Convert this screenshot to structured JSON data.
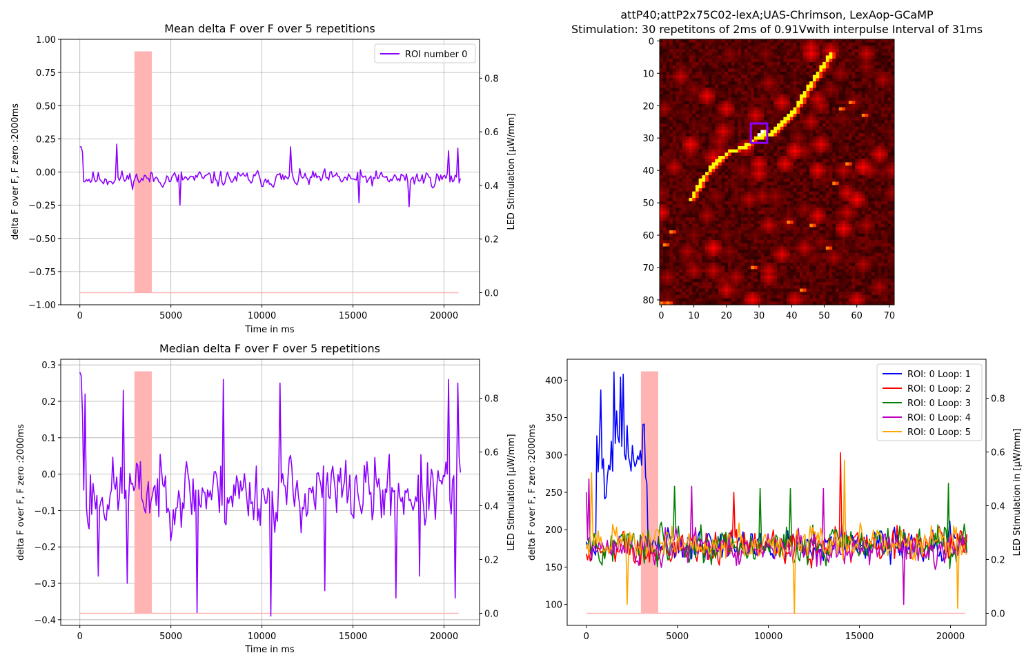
{
  "chart_data": [
    {
      "type": "line",
      "title": "Mean delta F over F over 5 repetitions",
      "xlabel": "Time in ms",
      "ylabel": "delta F over F, F zero :2000ms",
      "y2label": "LED Stimulation [$\\mu$W/mm]",
      "xlim": [
        -1050,
        21950
      ],
      "ylim": [
        -1.0,
        1.0
      ],
      "y2lim": [
        -0.045,
        0.945
      ],
      "xticks": [
        0,
        5000,
        10000,
        15000,
        20000
      ],
      "yticks": [
        1.0,
        0.75,
        0.5,
        0.25,
        0.0,
        -0.25,
        -0.5,
        -0.75,
        -1.0
      ],
      "ytick_labels": [
        "1.00",
        "0.75",
        "0.50",
        "0.25",
        "0.00",
        "−0.25",
        "−0.50",
        "−0.75",
        "−1.00"
      ],
      "y2ticks": [
        0.0,
        0.2,
        0.4,
        0.6,
        0.8
      ],
      "grid": true,
      "legend": "top-right",
      "stimulus": {
        "start": 3000,
        "end": 3950,
        "top": 0.9,
        "baseline": 0.0,
        "x_end": 20800,
        "color": "#ffb3b3"
      },
      "series": [
        {
          "name": "ROI number 0",
          "color": "#8b00ff",
          "x_start": 0,
          "x_end": 20900,
          "n": 290,
          "mean": -0.05,
          "amplitude": 0.075,
          "seed": 11,
          "spikes": [
            [
              0,
              0.19
            ],
            [
              1,
              0.19
            ],
            [
              2,
              0.15
            ],
            [
              28,
              0.21
            ],
            [
              160,
              0.19
            ],
            [
              250,
              -0.26
            ],
            [
              212,
              -0.23
            ],
            [
              76,
              -0.25
            ],
            [
              280,
              0.16
            ],
            [
              287,
              0.18
            ]
          ]
        }
      ]
    },
    {
      "type": "heatmap",
      "title": "attP40;attP2x75C02-lexA;UAS-Chrimson, LexAop-GCaMP",
      "subtitle": "Stimulation: 30 repetitons of 2ms of 0.91Vwith interpulse Interval of 31ms",
      "xticks": [
        0,
        10,
        20,
        30,
        40,
        50,
        60,
        70
      ],
      "yticks": [
        0,
        10,
        20,
        30,
        40,
        50,
        60,
        70,
        80
      ],
      "xlim": [
        -0.5,
        71.5
      ],
      "ylim": [
        -0.5,
        81.5
      ],
      "colormap": "hot",
      "roi_box": {
        "x": [
          28,
          32
        ],
        "y": [
          26,
          31
        ],
        "color": "#8b00ff"
      },
      "bright_path": [
        [
          52,
          4
        ],
        [
          48,
          10
        ],
        [
          44,
          16
        ],
        [
          41,
          21
        ],
        [
          37,
          25
        ],
        [
          33,
          29
        ],
        [
          29,
          30
        ],
        [
          25,
          33
        ],
        [
          21,
          34
        ],
        [
          17,
          37
        ],
        [
          13,
          42
        ],
        [
          9,
          49
        ]
      ],
      "bright_spots": [
        [
          30,
          29
        ],
        [
          31,
          28
        ],
        [
          55,
          21
        ],
        [
          58,
          19
        ],
        [
          62,
          23
        ],
        [
          57,
          38
        ],
        [
          3,
          59
        ],
        [
          1,
          63
        ],
        [
          0,
          81
        ],
        [
          2,
          81
        ],
        [
          53,
          44
        ],
        [
          39,
          56
        ],
        [
          46,
          57
        ],
        [
          51,
          64
        ],
        [
          28,
          70
        ],
        [
          43,
          77
        ]
      ]
    },
    {
      "type": "line",
      "title": "Median delta F over F over 5 repetitions",
      "xlabel": "Time in ms",
      "ylabel": "delta F over F, F zero :2000ms",
      "y2label": "LED Stimulation [$\\mu$W/mm]",
      "xlim": [
        -1050,
        21950
      ],
      "ylim": [
        -0.4155,
        0.3155
      ],
      "y2lim": [
        -0.045,
        0.945
      ],
      "xticks": [
        0,
        5000,
        10000,
        15000,
        20000
      ],
      "yticks": [
        0.3,
        0.2,
        0.1,
        0.0,
        -0.1,
        -0.2,
        -0.3,
        -0.4
      ],
      "ytick_labels": [
        "0.3",
        "0.2",
        "0.1",
        "0.0",
        "−0.1",
        "−0.2",
        "−0.3",
        "−0.4"
      ],
      "y2ticks": [
        0.0,
        0.2,
        0.4,
        0.6,
        0.8
      ],
      "grid": true,
      "stimulus": {
        "start": 3000,
        "end": 3950,
        "top": 0.9,
        "baseline": 0.0,
        "x_end": 20800,
        "color": "#ffb3b3"
      },
      "series": [
        {
          "color": "#8b00ff",
          "x_start": 0,
          "x_end": 20900,
          "n": 290,
          "mean": -0.05,
          "amplitude": 0.12,
          "seed": 23,
          "spikes": [
            [
              0,
              0.28
            ],
            [
              1,
              0.27
            ],
            [
              2,
              0.17
            ],
            [
              4,
              0.22
            ],
            [
              7,
              -0.15
            ],
            [
              14,
              -0.28
            ],
            [
              33,
              0.23
            ],
            [
              36,
              -0.3
            ],
            [
              89,
              -0.38
            ],
            [
              109,
              0.26
            ],
            [
              145,
              -0.39
            ],
            [
              152,
              0.25
            ],
            [
              186,
              -0.32
            ],
            [
              240,
              -0.34
            ],
            [
              258,
              -0.28
            ],
            [
              280,
              0.26
            ],
            [
              285,
              -0.34
            ],
            [
              287,
              0.25
            ]
          ]
        }
      ]
    },
    {
      "type": "line",
      "xlabel": "",
      "ylabel": "delta F over F, F zero :2000ms",
      "y2label": "LED Stimulation in [$\\mu$W/mm]",
      "xlim": [
        -1050,
        21950
      ],
      "ylim": [
        72,
        428
      ],
      "y2lim": [
        -0.045,
        0.945
      ],
      "xticks": [
        0,
        5000,
        10000,
        15000,
        20000
      ],
      "yticks": [
        400,
        350,
        300,
        250,
        200,
        150,
        100
      ],
      "y2ticks": [
        0.0,
        0.2,
        0.4,
        0.6,
        0.8
      ],
      "grid": false,
      "legend": "top-right",
      "stimulus": {
        "start": 3000,
        "end": 3950,
        "top": 0.9,
        "baseline": 0.0,
        "x_end": 20800,
        "color": "#ffb3b3"
      },
      "series": [
        {
          "name": "ROI: 0 Loop: 1",
          "color": "#0000ff",
          "x_start": 0,
          "x_end": 20900,
          "n": 290,
          "mean": 180,
          "amplitude": 28,
          "seed": 101,
          "burst": {
            "from": 8,
            "to": 46,
            "mean": 300,
            "amplitude": 60
          },
          "spikes": [
            [
              11,
              387
            ],
            [
              21,
              411
            ],
            [
              26,
              404
            ],
            [
              28,
              408
            ]
          ]
        },
        {
          "name": "ROI: 0 Loop: 2",
          "color": "#ff0000",
          "x_start": 0,
          "x_end": 20900,
          "n": 290,
          "mean": 178,
          "amplitude": 30,
          "seed": 202,
          "spikes": [
            [
              193,
              303
            ],
            [
              112,
              250
            ]
          ]
        },
        {
          "name": "ROI: 0 Loop: 3",
          "color": "#008000",
          "x_start": 0,
          "x_end": 20900,
          "n": 290,
          "mean": 180,
          "amplitude": 30,
          "seed": 303,
          "spikes": [
            [
              67,
              258
            ],
            [
              155,
              255
            ],
            [
              275,
              262
            ],
            [
              132,
              255
            ]
          ]
        },
        {
          "name": "ROI: 0 Loop: 4",
          "color": "#bf00bf",
          "x_start": 0,
          "x_end": 20900,
          "n": 290,
          "mean": 175,
          "amplitude": 28,
          "seed": 404,
          "spikes": [
            [
              0,
              250
            ],
            [
              2,
              268
            ],
            [
              80,
              258
            ],
            [
              180,
              255
            ],
            [
              241,
              100
            ]
          ]
        },
        {
          "name": "ROI: 0 Loop: 5",
          "color": "#ffa500",
          "x_start": 0,
          "x_end": 20900,
          "n": 290,
          "mean": 182,
          "amplitude": 28,
          "seed": 505,
          "spikes": [
            [
              4,
              276
            ],
            [
              31,
              100
            ],
            [
              196,
              293
            ],
            [
              158,
              88
            ],
            [
              282,
              95
            ]
          ]
        }
      ]
    }
  ]
}
